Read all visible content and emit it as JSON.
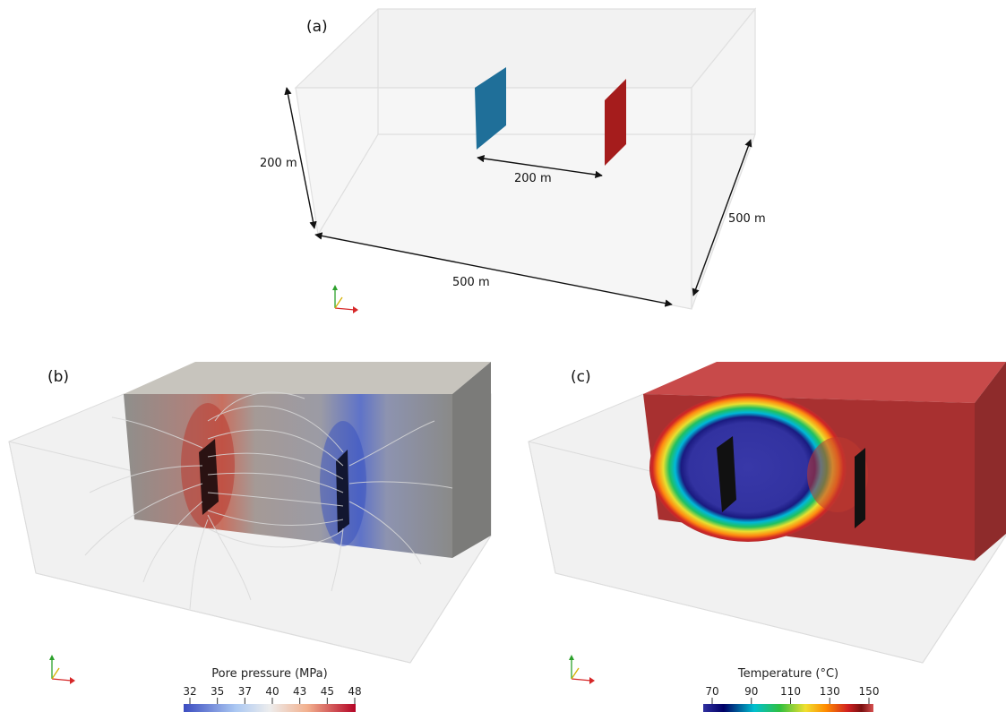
{
  "panels": {
    "a": {
      "label": "(a)",
      "dim_height": "200 m",
      "dim_spacing": "200 m",
      "dim_length": "500 m",
      "dim_width": "500 m",
      "colors": {
        "injector": "#1f6f99",
        "producer": "#a51c1c"
      }
    },
    "b": {
      "label": "(b)",
      "colorbar": {
        "title": "Pore pressure (MPa)",
        "ticks": [
          "32",
          "35",
          "37",
          "40",
          "43",
          "45",
          "48"
        ],
        "colors": [
          "#3b4cc0",
          "#c9d7f0",
          "#f2f2f2",
          "#f2c4a8",
          "#b40426"
        ]
      }
    },
    "c": {
      "label": "(c)",
      "colorbar": {
        "title": "Temperature (°C)",
        "ticks": [
          "70",
          "90",
          "110",
          "130",
          "150"
        ],
        "colors": [
          "#2a2a9a",
          "#000066",
          "#00bcd4",
          "#2ecc40",
          "#ffeb3b",
          "#ff9800",
          "#e53935",
          "#8b1a1a",
          "#d64a4a"
        ]
      }
    }
  }
}
